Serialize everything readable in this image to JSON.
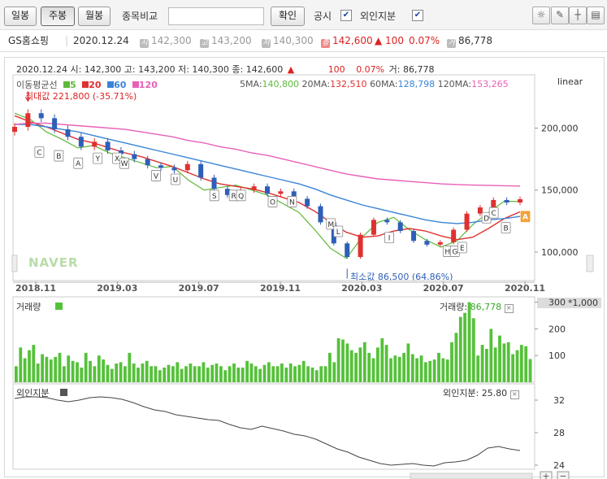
{
  "toolbar": {
    "daily": "일봉",
    "weekly": "주봉",
    "monthly": "월봉",
    "compare_label": "종목비교",
    "compare_value": "",
    "confirm": "확인",
    "disclosure": "공시",
    "foreign_label": "외인지분"
  },
  "info": {
    "name": "GS홈쇼핑",
    "date": "2020.12.24",
    "open_tag": "시",
    "open": "142,300",
    "high_tag": "고",
    "high": "143,200",
    "low_tag": "저",
    "low": "140,300",
    "close_tag": "종",
    "close": "142,600",
    "change": "▲ 100",
    "rate": "0.07%",
    "vol_tag": "거",
    "volume": "86,778"
  },
  "price_header": {
    "line": "2020.12.24 시: 142,300 고: 143,200 저: 140,300 종: 142,600",
    "arrow": "▲",
    "change": "100",
    "rate": "0.07%",
    "volume": "거: 86,778"
  },
  "ma_legend": {
    "title": "이동평균선",
    "p5": "5",
    "p20": "20",
    "p60": "60",
    "p120": "120",
    "ma5_label": "5MA:",
    "ma5": "140,800",
    "ma20_label": "20MA:",
    "ma20": "132,510",
    "ma60_label": "60MA:",
    "ma60": "128,798",
    "ma120_label": "120MA:",
    "ma120": "153,265",
    "scale": "linear"
  },
  "annotations": {
    "max": "최대값 221,800 (-35.71%)",
    "min": "최소값 86,500 (64.86%)",
    "logo": "NAVER"
  },
  "volume_panel": {
    "title": "거래량",
    "value_label": "거래량:",
    "value": "86,778",
    "unit": "*1,000"
  },
  "foreign_panel": {
    "title": "외인지분",
    "value_label": "외인지분:",
    "value": "25.80"
  },
  "colors": {
    "up": "#e03030",
    "down": "#2e5fb8",
    "ma5": "#5fb83a",
    "ma20": "#e03030",
    "ma60": "#3a85d6",
    "ma120": "#e860b8",
    "volume": "#55c13a",
    "foreign": "#444444"
  },
  "chart_data": [
    {
      "type": "line",
      "title": "GS홈쇼핑 주봉",
      "x_ticks": [
        "2018.11",
        "2019.03",
        "2019.07",
        "2019.11",
        "2020.03",
        "2020.07",
        "2020.11"
      ],
      "y_ticks": [
        100000,
        150000,
        200000
      ],
      "ylim": [
        77000,
        243000
      ],
      "x_range": [
        "2018.10",
        "2020.12"
      ],
      "price_range": {
        "max": 221800,
        "min": 86500
      },
      "series": [
        {
          "name": "5",
          "values": [
            212000,
            207000,
            197000,
            191000,
            184000,
            186000,
            180000,
            176000,
            172000,
            168000,
            169000,
            158000,
            150000,
            152000,
            154000,
            150000,
            146000,
            139000,
            132000,
            118000,
            103000,
            95000,
            112000,
            124000,
            128000,
            118000,
            110000,
            104000,
            109000,
            122000,
            132000,
            141000,
            140800
          ]
        },
        {
          "name": "20",
          "values": [
            210000,
            205000,
            201000,
            196000,
            191000,
            188000,
            184000,
            180000,
            177000,
            173000,
            169000,
            164000,
            159000,
            155000,
            153000,
            151000,
            148000,
            144000,
            140000,
            133000,
            124000,
            116000,
            112000,
            113000,
            117000,
            119000,
            117000,
            113000,
            110000,
            112000,
            119000,
            127000,
            132510
          ]
        },
        {
          "name": "60",
          "values": [
            203000,
            203000,
            201000,
            199000,
            197000,
            194000,
            191000,
            188000,
            185000,
            182000,
            179000,
            176000,
            173000,
            170000,
            167000,
            164000,
            161000,
            158000,
            155000,
            151000,
            146000,
            142000,
            138000,
            135000,
            132000,
            129000,
            126000,
            124000,
            123000,
            124000,
            126000,
            127000,
            128798
          ]
        },
        {
          "name": "120",
          "values": [
            203000,
            204000,
            204000,
            203000,
            202000,
            201000,
            200000,
            199000,
            197000,
            195000,
            193000,
            190000,
            188000,
            185000,
            183000,
            180000,
            178000,
            175000,
            172000,
            169000,
            166000,
            163000,
            161000,
            159000,
            158000,
            157000,
            156000,
            155000,
            154500,
            154000,
            153800,
            153500,
            153265
          ]
        }
      ],
      "closes": [
        201000,
        212000,
        208000,
        199000,
        193000,
        185000,
        189000,
        182000,
        179000,
        175000,
        170000,
        168000,
        166000,
        171000,
        160000,
        151000,
        146000,
        150000,
        153000,
        147000,
        149000,
        143000,
        137000,
        124000,
        107000,
        96000,
        114000,
        126000,
        124000,
        117000,
        109000,
        106000,
        108000,
        118000,
        131000,
        136000,
        142000,
        140000,
        142600
      ],
      "markers": [
        {
          "label": "C",
          "x": "2018.11",
          "price": 181000
        },
        {
          "label": "B",
          "x": "2018.12",
          "price": 178000
        },
        {
          "label": "A",
          "x": "2019.01",
          "price": 172000
        },
        {
          "label": "Y",
          "x": "2019.02",
          "price": 176000
        },
        {
          "label": "X",
          "x": "2019.03",
          "price": 176000
        },
        {
          "label": "W",
          "x": "2019.03",
          "price": 172000
        },
        {
          "label": "V",
          "x": "2019.05",
          "price": 162000
        },
        {
          "label": "U",
          "x": "2019.06",
          "price": 159000
        },
        {
          "label": "S",
          "x": "2019.08",
          "price": 146000
        },
        {
          "label": "R",
          "x": "2019.09",
          "price": 146000
        },
        {
          "label": "Q",
          "x": "2019.09",
          "price": 146000
        },
        {
          "label": "O",
          "x": "2019.11",
          "price": 141000
        },
        {
          "label": "N",
          "x": "2019.12",
          "price": 141000
        },
        {
          "label": "M",
          "x": "2020.02",
          "price": 123000
        },
        {
          "label": "L",
          "x": "2020.02",
          "price": 117000
        },
        {
          "label": "I",
          "x": "2020.05",
          "price": 112000
        },
        {
          "label": "H",
          "x": "2020.08",
          "price": 101000
        },
        {
          "label": "G",
          "x": "2020.08",
          "price": 101000
        },
        {
          "label": "E",
          "x": "2020.08",
          "price": 104000
        },
        {
          "label": "D",
          "x": "2020.10",
          "price": 128000
        },
        {
          "label": "C",
          "x": "2020.10",
          "price": 132000
        },
        {
          "label": "B",
          "x": "2020.11",
          "price": 120000
        },
        {
          "label": "A",
          "x": "2020.12",
          "price": 129000
        }
      ],
      "ylabel": "",
      "xlabel": "",
      "grid": false,
      "legend": "top-left"
    },
    {
      "type": "bar",
      "title": "거래량",
      "unit": "*1,000",
      "y_ticks": [
        100,
        200,
        300
      ],
      "ylim": [
        0,
        320
      ],
      "values": [
        60,
        130,
        90,
        120,
        140,
        70,
        105,
        95,
        85,
        95,
        110,
        60,
        100,
        80,
        75,
        55,
        110,
        80,
        60,
        100,
        85,
        65,
        50,
        70,
        75,
        60,
        110,
        70,
        55,
        70,
        80,
        60,
        60,
        45,
        55,
        65,
        60,
        75,
        50,
        60,
        70,
        60,
        60,
        75,
        55,
        65,
        70,
        60,
        45,
        60,
        70,
        55,
        55,
        80,
        70,
        60,
        50,
        65,
        75,
        60,
        60,
        70,
        55,
        70,
        60,
        65,
        80,
        60,
        55,
        45,
        60,
        60,
        110,
        75,
        165,
        160,
        145,
        120,
        110,
        130,
        150,
        110,
        90,
        130,
        165,
        140,
        90,
        100,
        95,
        110,
        145,
        105,
        90,
        100,
        75,
        80,
        85,
        110,
        90,
        85,
        150,
        185,
        245,
        260,
        300,
        240,
        100,
        140,
        125,
        200,
        130,
        175,
        145,
        150,
        105,
        120,
        140,
        135,
        87
      ]
    },
    {
      "type": "line",
      "title": "외인지분",
      "y_ticks": [
        24,
        28,
        32
      ],
      "ylim": [
        23.5,
        34
      ],
      "values": [
        32.2,
        32.4,
        32.4,
        32.3,
        32.0,
        31.8,
        32.0,
        32.3,
        32.4,
        32.3,
        32.1,
        31.7,
        31.2,
        30.8,
        30.6,
        30.2,
        30.0,
        29.8,
        29.6,
        29.5,
        29.0,
        28.6,
        28.4,
        28.8,
        28.5,
        28.2,
        27.8,
        27.6,
        27.2,
        26.6,
        26.0,
        25.6,
        25.0,
        24.6,
        24.2,
        24.0,
        24.1,
        24.2,
        24.0,
        23.9,
        24.3,
        24.4,
        24.6,
        25.2,
        26.1,
        26.3,
        26.0,
        25.8
      ]
    }
  ]
}
